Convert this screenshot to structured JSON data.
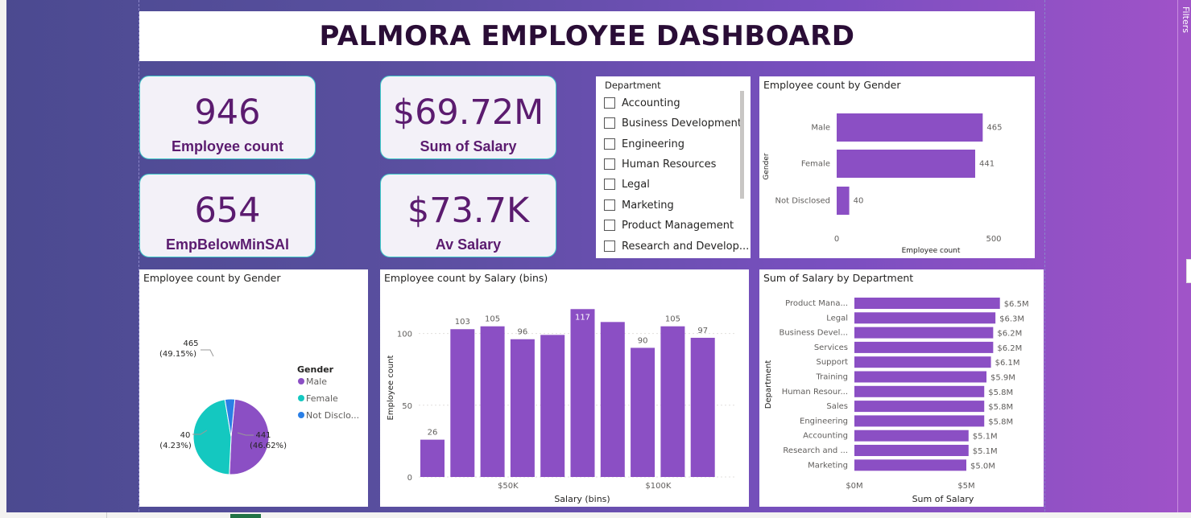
{
  "dashboard_title": "PALMORA EMPLOYEE DASHBOARD",
  "side_pane_label": "Filters",
  "cards": {
    "employee_count": {
      "value": "946",
      "label": "Employee count"
    },
    "sum_salary": {
      "value": "$69.72M",
      "label": "Sum of Salary"
    },
    "emp_below_min": {
      "value": "654",
      "label": "EmpBelowMinSAl"
    },
    "avg_salary": {
      "value": "$73.7K",
      "label": "Av Salary"
    }
  },
  "slicer": {
    "header": "Department",
    "items": [
      "Accounting",
      "Business Development",
      "Engineering",
      "Human Resources",
      "Legal",
      "Marketing",
      "Product Management",
      "Research and Develop..."
    ]
  },
  "chart_data": [
    {
      "id": "gender_bar",
      "type": "bar",
      "orientation": "horizontal",
      "title": "Employee count by Gender",
      "categories": [
        "Male",
        "Female",
        "Not Disclosed"
      ],
      "values": [
        465,
        441,
        40
      ],
      "value_labels": [
        "465",
        "441",
        "40"
      ],
      "xlabel": "Employee count",
      "ylabel": "Gender",
      "xticks": [
        "0",
        "500"
      ],
      "xlim": [
        0,
        550
      ],
      "color": "#8b4fc4"
    },
    {
      "id": "gender_pie",
      "type": "pie",
      "title": "Employee count by Gender",
      "legend_title": "Gender",
      "legend_position": "right",
      "categories": [
        "Male",
        "Female",
        "Not Disclo..."
      ],
      "values": [
        465,
        441,
        40
      ],
      "labels": [
        {
          "count": "465",
          "pct": "(49.15%)"
        },
        {
          "count": "441",
          "pct": "(46.62%)"
        },
        {
          "count": "40",
          "pct": "(4.23%)"
        }
      ],
      "colors": [
        "#8b4fc4",
        "#14c8c0",
        "#2a7fe6"
      ]
    },
    {
      "id": "salary_bins",
      "type": "bar",
      "title": "Employee count by Salary (bins)",
      "values": [
        26,
        103,
        105,
        96,
        99,
        117,
        108,
        90,
        105,
        97
      ],
      "value_labels": [
        "26",
        "103",
        "105",
        "96",
        "",
        "117",
        "",
        "90",
        "105",
        "97"
      ],
      "xlabel": "Salary (bins)",
      "ylabel": "Employee count",
      "yticks": [
        0,
        50,
        100
      ],
      "ylim": [
        0,
        125
      ],
      "x_tick_labels": [
        {
          "bin": 3,
          "label": "$50K"
        },
        {
          "bin": 8,
          "label": "$100K"
        }
      ],
      "color": "#8b4fc4"
    },
    {
      "id": "salary_by_dept",
      "type": "bar",
      "orientation": "horizontal",
      "title": "Sum of Salary by Department",
      "categories": [
        "Product Mana...",
        "Legal",
        "Business Devel...",
        "Services",
        "Support",
        "Training",
        "Human Resour...",
        "Sales",
        "Engineering",
        "Accounting",
        "Research and ...",
        "Marketing"
      ],
      "values": [
        6.5,
        6.3,
        6.2,
        6.2,
        6.1,
        5.9,
        5.8,
        5.8,
        5.8,
        5.1,
        5.1,
        5.0
      ],
      "value_labels": [
        "$6.5M",
        "$6.3M",
        "$6.2M",
        "$6.2M",
        "$6.1M",
        "$5.9M",
        "$5.8M",
        "$5.8M",
        "$5.8M",
        "$5.1M",
        "$5.1M",
        "$5.0M"
      ],
      "xlabel": "Sum of Salary",
      "ylabel": "Department",
      "xticks": [
        "$0M",
        "$5M"
      ],
      "xlim": [
        0,
        7.5
      ],
      "color": "#8b4fc4"
    }
  ]
}
